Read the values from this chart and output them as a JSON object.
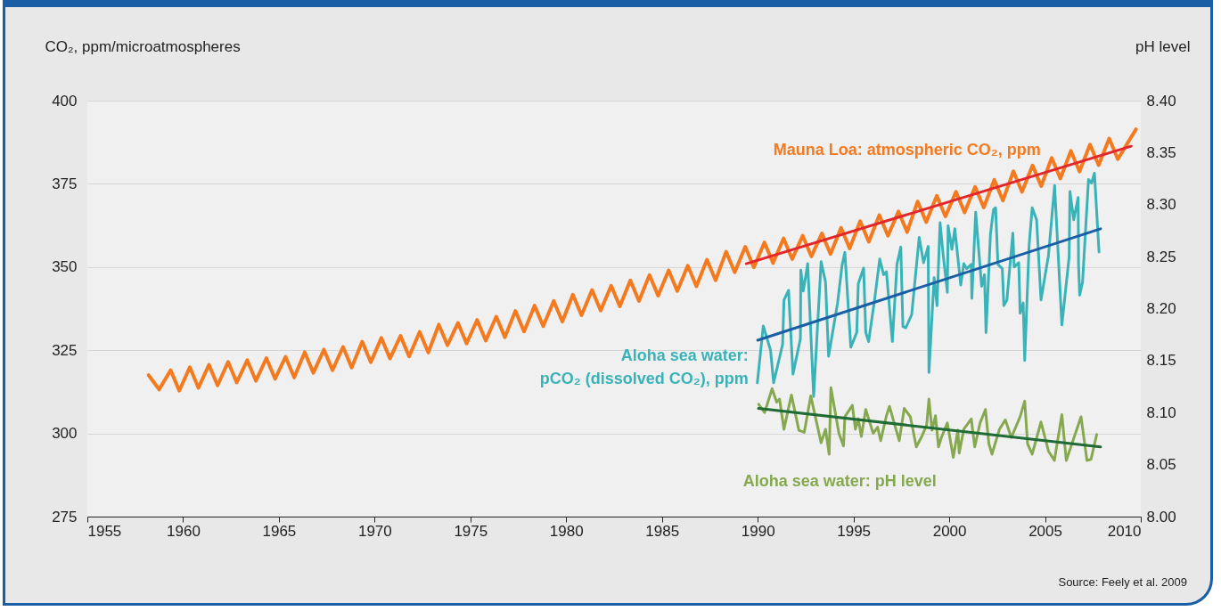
{
  "chart_data": {
    "type": "line",
    "ylabel": "CO₂, ppm/microatmospheres",
    "y2label": "pH level",
    "xlim": [
      1955,
      2010
    ],
    "xticks": [
      1955,
      1960,
      1965,
      1970,
      1975,
      1980,
      1985,
      1990,
      1995,
      2000,
      2005,
      2010
    ],
    "ylim": [
      275,
      400
    ],
    "yticks": [
      275,
      300,
      325,
      350,
      375,
      400
    ],
    "y2lim": [
      8.0,
      8.4
    ],
    "y2ticks": [
      {
        "value": 8.0,
        "label": "8.00"
      },
      8.05,
      {
        "value": 8.1,
        "label": "8.10"
      },
      8.15,
      {
        "value": 8.2,
        "label": "8.20"
      },
      8.25,
      {
        "value": 8.3,
        "label": "8.30"
      },
      8.35,
      {
        "value": 8.4,
        "label": "8.40"
      }
    ],
    "grid": "y",
    "marker": "none",
    "line_style": "solid",
    "series": [
      {
        "name": "Mauna Loa: atmospheric CO₂, ppm",
        "color": "#f47a20",
        "x": [
          1958.2,
          1958.75,
          1959.35,
          1959.8,
          1960.35,
          1960.8,
          1961.35,
          1961.8,
          1962.35,
          1962.8,
          1963.35,
          1963.8,
          1964.35,
          1964.8,
          1965.35,
          1965.8,
          1966.35,
          1966.8,
          1967.35,
          1967.8,
          1968.35,
          1968.8,
          1969.35,
          1969.8,
          1970.35,
          1970.8,
          1971.35,
          1971.8,
          1972.35,
          1972.8,
          1973.35,
          1973.8,
          1974.35,
          1974.8,
          1975.35,
          1975.8,
          1976.35,
          1976.8,
          1977.35,
          1977.8,
          1978.35,
          1978.8,
          1979.35,
          1979.8,
          1980.35,
          1980.8,
          1981.35,
          1981.8,
          1982.35,
          1982.8,
          1983.35,
          1983.8,
          1984.35,
          1984.8,
          1985.35,
          1985.8,
          1986.35,
          1986.8,
          1987.35,
          1987.8,
          1988.35,
          1988.8,
          1989.35,
          1989.8,
          1990.35,
          1990.8,
          1991.35,
          1991.8,
          1992.35,
          1992.8,
          1993.35,
          1993.8,
          1994.35,
          1994.8,
          1995.35,
          1995.8,
          1996.35,
          1996.8,
          1997.35,
          1997.8,
          1998.35,
          1998.8,
          1999.35,
          1999.8,
          2000.35,
          2000.8,
          2001.35,
          2001.8,
          2002.35,
          2002.8,
          2003.35,
          2003.8,
          2004.35,
          2004.8,
          2005.35,
          2005.8,
          2006.35,
          2006.8,
          2007.35,
          2007.8,
          2008.35,
          2008.8,
          2009.75
        ],
        "values": [
          317.5,
          313.2,
          319.0,
          312.8,
          319.9,
          313.7,
          320.6,
          314.4,
          321.5,
          315.3,
          322.0,
          315.8,
          322.6,
          316.4,
          323.0,
          316.8,
          324.4,
          318.2,
          325.2,
          319.0,
          326.0,
          319.8,
          327.6,
          321.4,
          328.7,
          322.5,
          329.3,
          323.1,
          330.5,
          324.3,
          332.7,
          326.5,
          333.2,
          327.0,
          334.1,
          327.9,
          335.1,
          328.9,
          336.8,
          330.6,
          338.4,
          332.2,
          339.8,
          333.6,
          341.7,
          335.5,
          343.1,
          336.9,
          344.4,
          338.2,
          346.0,
          339.8,
          347.6,
          341.4,
          349.0,
          342.8,
          350.4,
          344.2,
          352.2,
          346.0,
          354.6,
          348.4,
          356.1,
          349.9,
          357.4,
          351.2,
          358.6,
          352.4,
          359.4,
          353.2,
          360.1,
          353.9,
          361.8,
          355.6,
          363.8,
          357.6,
          365.6,
          359.4,
          366.7,
          360.5,
          369.7,
          363.5,
          371.4,
          365.2,
          372.6,
          366.4,
          374.1,
          367.9,
          376.2,
          370.0,
          378.8,
          372.6,
          380.5,
          374.3,
          382.8,
          376.6,
          384.9,
          378.7,
          386.8,
          380.6,
          388.6,
          382.4,
          391.4
        ]
      },
      {
        "type": "line",
        "color": "#e3262b",
        "x": [
          1989.4,
          2009.5
        ],
        "values": [
          351.0,
          386.3
        ]
      },
      {
        "name": "Aloha sea water: pCO₂ (dissolved CO₂), ppm",
        "color": "#3ab3b8",
        "x": [
          1989.98,
          1990.29,
          1990.67,
          1990.83,
          1991.3,
          1991.37,
          1991.61,
          1991.84,
          1992.23,
          1992.25,
          1992.38,
          1992.61,
          1992.92,
          1993.31,
          1993.54,
          1993.7,
          1994.17,
          1994.4,
          1994.55,
          1994.86,
          1995.17,
          1995.25,
          1995.53,
          1995.64,
          1995.79,
          1996.1,
          1996.37,
          1996.57,
          1996.72,
          1997.03,
          1997.27,
          1997.47,
          1997.58,
          1997.73,
          1998.04,
          1998.43,
          1998.66,
          1998.9,
          1998.94,
          1999.21,
          1999.36,
          1999.52,
          1999.67,
          1999.9,
          1999.94,
          2000.14,
          2000.29,
          2000.6,
          2000.76,
          2000.91,
          2001.15,
          2001.18,
          2001.38,
          2001.69,
          2001.84,
          2001.92,
          2002.15,
          2002.31,
          2002.42,
          2002.54,
          2002.77,
          2002.85,
          2003.01,
          2003.32,
          2003.39,
          2003.63,
          2003.7,
          2003.86,
          2003.94,
          2004.17,
          2004.33,
          2004.56,
          2004.79,
          2005.18,
          2005.5,
          2005.88,
          2006.26,
          2006.3,
          2006.5,
          2006.73,
          2006.75,
          2006.81,
          2006.96,
          2007.27,
          2007.43,
          2007.58,
          2007.82
        ],
        "values": [
          315.2,
          332.3,
          325.0,
          315.2,
          326.8,
          340.1,
          343.0,
          317.8,
          328.5,
          349.1,
          342.8,
          351.0,
          311.1,
          351.6,
          345.5,
          323.2,
          339.2,
          350.4,
          354.4,
          325.9,
          330.3,
          345.0,
          349.7,
          330.3,
          327.6,
          340.1,
          352.4,
          347.7,
          348.6,
          327.6,
          350.8,
          356.0,
          332.1,
          331.7,
          335.7,
          358.9,
          351.3,
          356.2,
          318.3,
          346.8,
          338.4,
          363.3,
          354.4,
          342.4,
          362.4,
          355.3,
          361.5,
          344.6,
          351.0,
          349.5,
          350.8,
          340.6,
          366.5,
          344.2,
          347.7,
          330.3,
          359.8,
          367.3,
          367.8,
          350.8,
          349.5,
          338.4,
          340.1,
          360.2,
          350.0,
          351.3,
          336.1,
          339.2,
          321.9,
          356.6,
          367.8,
          364.2,
          340.1,
          353.5,
          374.5,
          332.6,
          353.1,
          372.7,
          364.2,
          370.9,
          350.8,
          341.5,
          345.5,
          376.3,
          375.2,
          378.2,
          354.5
        ]
      },
      {
        "type": "line",
        "color": "#1a5ea6",
        "x": [
          1990.0,
          2007.9
        ],
        "values": [
          328.0,
          361.5
        ]
      },
      {
        "name": "Aloha sea water: pH level",
        "color": "#86a84e",
        "axis": "y2",
        "x": [
          1990.05,
          1990.36,
          1990.75,
          1990.99,
          1991.14,
          1991.37,
          1991.76,
          1992.15,
          1992.43,
          1992.77,
          1993.31,
          1993.54,
          1993.73,
          1993.82,
          1994.24,
          1994.48,
          1994.55,
          1994.94,
          1995.1,
          1995.25,
          1995.41,
          1995.64,
          1996.03,
          1996.26,
          1996.42,
          1996.72,
          1996.88,
          1997.03,
          1997.39,
          1997.65,
          1997.97,
          1998.28,
          1998.59,
          1998.82,
          1998.94,
          1999.1,
          1999.28,
          1999.44,
          1999.59,
          1999.9,
          2000.21,
          2000.45,
          2000.52,
          2000.76,
          2001.15,
          2001.33,
          2001.61,
          2001.89,
          2002.07,
          2002.23,
          2002.62,
          2002.93,
          2003.24,
          2003.7,
          2003.94,
          2004.09,
          2004.33,
          2004.79,
          2005.18,
          2005.49,
          2005.88,
          2006.11,
          2006.88,
          2007.19,
          2007.4,
          2007.7
        ],
        "values": [
          8.108,
          8.1,
          8.123,
          8.11,
          8.113,
          8.084,
          8.117,
          8.083,
          8.081,
          8.116,
          8.071,
          8.084,
          8.06,
          8.124,
          8.08,
          8.068,
          8.096,
          8.107,
          8.084,
          8.094,
          8.077,
          8.103,
          8.08,
          8.086,
          8.073,
          8.097,
          8.106,
          8.096,
          8.073,
          8.104,
          8.096,
          8.067,
          8.078,
          8.088,
          8.113,
          8.083,
          8.097,
          8.067,
          8.076,
          8.09,
          8.057,
          8.083,
          8.061,
          8.084,
          8.094,
          8.067,
          8.09,
          8.103,
          8.07,
          8.06,
          8.084,
          8.093,
          8.076,
          8.096,
          8.111,
          8.07,
          8.06,
          8.091,
          8.063,
          8.054,
          8.098,
          8.054,
          8.096,
          8.054,
          8.055,
          8.079
        ]
      },
      {
        "type": "line",
        "color": "#1f6b36",
        "axis": "y2",
        "x": [
          1990.04,
          2007.9
        ],
        "values": [
          8.104,
          8.067
        ]
      }
    ],
    "annotations": [
      "Source: Feely et al. 2009"
    ]
  }
}
